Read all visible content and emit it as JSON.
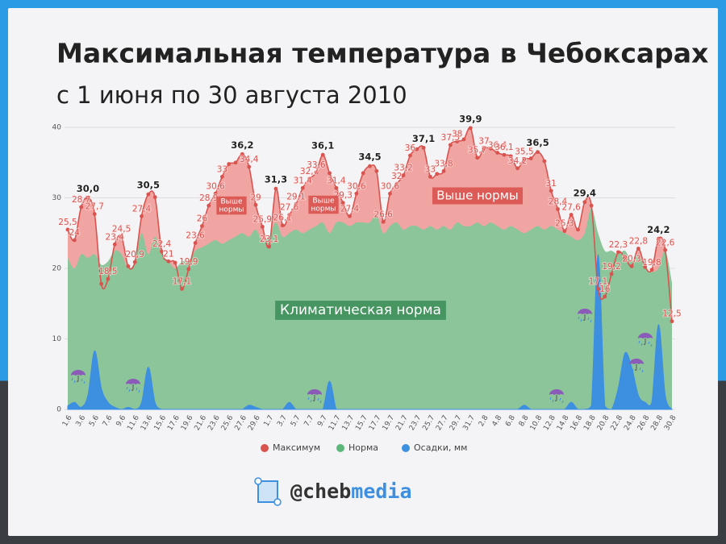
{
  "chart_data": {
    "type": "area",
    "title": "Максимальная температура в Чебоксарах",
    "subtitle": "с 1 июня по 30 августа 2010",
    "categories": [
      "1.6",
      null,
      "3.6",
      null,
      "5.6",
      null,
      "7.6",
      null,
      "9.6",
      null,
      "11.6",
      null,
      "13.6",
      null,
      "15.6",
      null,
      "17.6",
      null,
      "19.6",
      null,
      "21.6",
      null,
      "23.6",
      null,
      "25.6",
      null,
      "27.6",
      null,
      "29.6",
      null,
      "1.7",
      null,
      "3.7",
      null,
      "5.7",
      null,
      "7.7",
      null,
      "9.7",
      null,
      "11.7",
      null,
      "13.7",
      null,
      "15.7",
      null,
      "17.7",
      null,
      "19.7",
      null,
      "21.7",
      null,
      "23.7",
      null,
      "25.7",
      null,
      "27.7",
      null,
      "29.7",
      null,
      "31.7",
      null,
      "2.8",
      null,
      "4.8",
      null,
      "6.8",
      null,
      "8.8",
      null,
      "10.8",
      null,
      "12.8",
      null,
      "14.8",
      null,
      "16.8",
      null,
      "18.8",
      null,
      "20.8",
      null,
      "22.8",
      null,
      "24.8",
      null,
      "26.8",
      null,
      "28.8",
      null,
      "30.8"
    ],
    "series": [
      {
        "name": "Максимум",
        "color": "#d9534f",
        "fill": "#f0a5a3",
        "values": [
          25.5,
          24,
          28.7,
          30.0,
          27.7,
          17.8,
          18.5,
          23.4,
          24.5,
          20.3,
          20.9,
          27.4,
          30.5,
          30.1,
          22.4,
          21,
          20.8,
          17.1,
          19.9,
          23.6,
          26,
          28.9,
          30.6,
          33,
          34.8,
          35,
          36.2,
          34.4,
          29,
          25.9,
          23.1,
          31.3,
          26.1,
          27.6,
          29.1,
          31.4,
          32.7,
          33.6,
          36.1,
          33.5,
          31.4,
          29.3,
          27.4,
          30.6,
          33.5,
          34.5,
          33.8,
          26.6,
          30.6,
          32,
          33.2,
          36,
          36.9,
          37.1,
          33,
          33.4,
          33.8,
          37.5,
          38,
          38.3,
          39.9,
          35.7,
          37,
          37,
          36.4,
          36.1,
          35.9,
          34.2,
          35.5,
          35.6,
          36.5,
          35.2,
          31,
          28.4,
          25.3,
          27.6,
          25.5,
          29.4,
          28.9,
          17.1,
          16,
          19.2,
          22.3,
          21.5,
          20.3,
          22.8,
          20.2,
          19.8,
          24.2,
          22.6,
          12.5
        ],
        "value_labels": [
          "25,5",
          "24",
          "28,7",
          "30,0",
          "27,7",
          null,
          "18,5",
          "23,4",
          "24,5",
          null,
          "20,9",
          "27,4",
          "30,5",
          null,
          "22,4",
          "21",
          null,
          "17,1",
          "19,9",
          "23,6",
          "26",
          "28,9",
          "30,6",
          "33",
          null,
          null,
          "36,2",
          "34,4",
          "29",
          "25,9",
          "23,1",
          "31,3",
          "26,1",
          "27,6",
          "29,1",
          "31,4",
          "32,7",
          "33,6",
          "36,1",
          null,
          "31,4",
          "29,3",
          "27,4",
          "30,6",
          null,
          "34,5",
          null,
          "26,6",
          "30,6",
          "32",
          "33,2",
          "36",
          null,
          "37,1",
          "33",
          null,
          "33,8",
          "37,5",
          "38",
          null,
          "39,9",
          "35,7",
          "37",
          null,
          "36,4",
          "36,1",
          null,
          "34,2",
          "35,5",
          null,
          "36,5",
          null,
          "31",
          "28,4",
          "25,3",
          "27,6",
          null,
          "29,4",
          null,
          "17,1",
          "16",
          "19,2",
          "22,3",
          null,
          "20,3",
          "22,8",
          null,
          "19,8",
          "24,2",
          "22,6",
          "12,5"
        ]
      },
      {
        "name": "Норма",
        "color": "#5cb87a",
        "fill": "#8dc59a",
        "values": [
          21.5,
          20,
          22,
          21.5,
          22,
          20.5,
          21,
          22.5,
          22,
          20,
          21,
          25,
          22,
          24.5,
          22,
          21,
          20,
          21,
          21,
          22.5,
          23,
          23.5,
          24,
          23.5,
          24,
          24.5,
          25,
          24.5,
          25.5,
          24,
          24.5,
          26.5,
          24.5,
          25,
          25.5,
          25,
          25.5,
          26,
          26.5,
          25,
          26.5,
          26.5,
          26,
          26.5,
          26.5,
          26.5,
          27.5,
          25,
          26,
          26.5,
          25.5,
          26,
          26,
          25.5,
          26,
          25.5,
          26,
          25.5,
          26.5,
          26,
          26,
          26.5,
          26,
          26.5,
          26,
          25.5,
          26,
          25.5,
          25,
          25.5,
          26,
          25.5,
          26,
          25.5,
          25,
          24.5,
          24,
          25,
          28.5,
          25,
          22.5,
          22.5,
          22,
          22.5,
          21,
          22,
          20,
          19.5,
          20,
          22.5,
          18
        ]
      },
      {
        "name": "Осадки, мм",
        "color": "#3d8fe0",
        "fill": "#3d8fe0",
        "values": [
          0.5,
          1,
          0.3,
          2,
          8.3,
          3,
          1,
          0.3,
          0,
          0.3,
          0,
          1,
          6,
          1,
          0,
          0,
          0,
          0,
          0,
          0,
          0,
          0,
          0,
          0,
          0,
          0,
          0,
          0.6,
          0.3,
          0,
          0,
          0,
          0,
          1,
          0,
          0,
          0,
          0,
          0,
          4,
          0,
          0,
          0,
          0,
          0,
          0,
          0,
          0,
          0,
          0,
          0,
          0,
          0,
          0,
          0,
          0,
          0,
          0,
          0,
          0,
          0,
          0,
          0,
          0,
          0,
          0,
          0,
          0,
          0.6,
          0,
          0,
          0,
          0,
          0,
          0,
          1,
          0,
          0,
          0.5,
          22,
          0.5,
          0,
          3,
          8,
          6,
          2,
          1,
          1,
          12,
          2,
          0
        ]
      }
    ],
    "ylim": [
      0,
      40
    ],
    "yticks": [
      0,
      10,
      20,
      30,
      40
    ],
    "grid": true,
    "legend": "bottom",
    "annotations": [
      {
        "lines": [
          "Выше",
          "нормы"
        ]
      },
      {
        "lines": [
          "Выше",
          "нормы"
        ]
      },
      {
        "lines": [
          "Выше нормы"
        ]
      },
      {
        "lines": [
          "Климатическая норма"
        ]
      }
    ]
  },
  "footer": {
    "handle_part1": "@cheb",
    "handle_part2": "media"
  }
}
